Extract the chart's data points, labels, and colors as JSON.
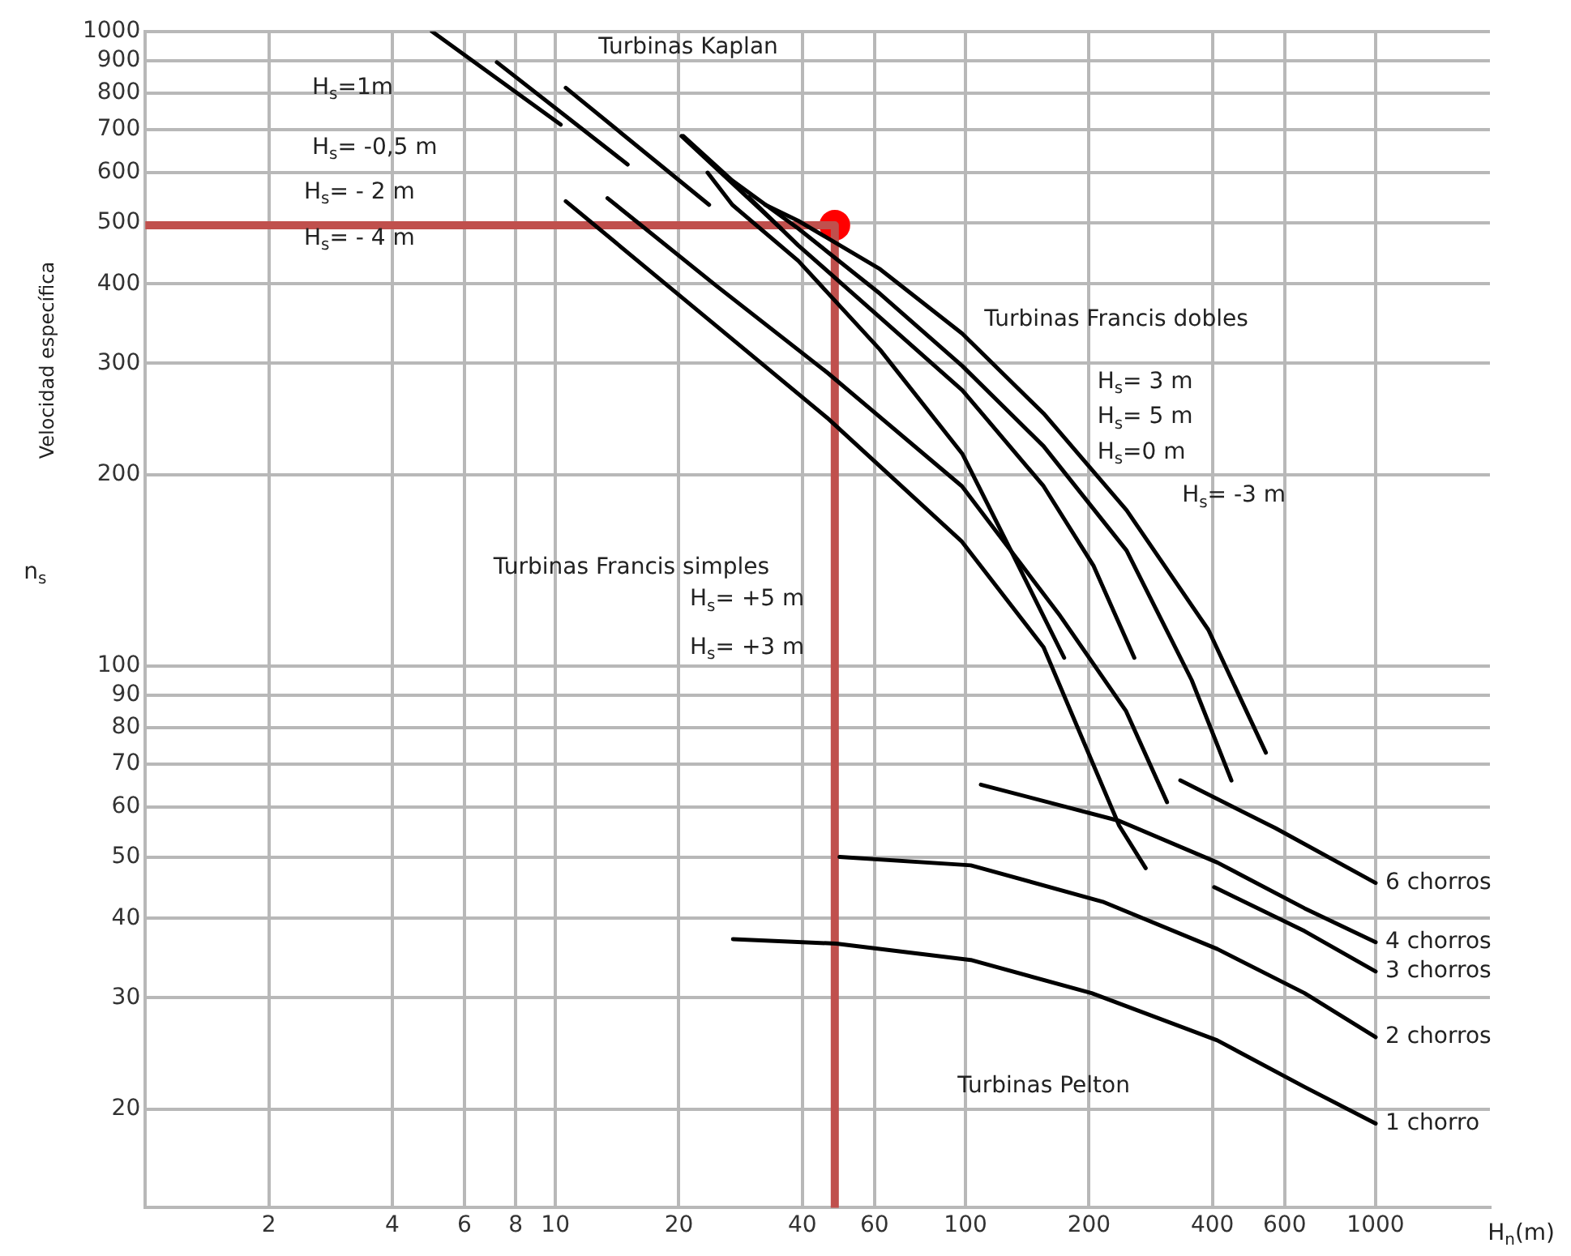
{
  "chart_data": {
    "type": "line",
    "xlabel": "H$_{n}$(m)",
    "ylabel": "Velocidad específica",
    "log": "xy",
    "grid": true,
    "marker": "none",
    "line_style": "solid",
    "xlim": [
      1,
      1900
    ],
    "xticks": [
      2,
      4,
      6,
      8,
      10,
      20,
      40,
      60,
      100,
      200,
      400,
      600,
      1000
    ],
    "ylim": [
      14,
      1000
    ],
    "yticks": [
      20,
      30,
      40,
      50,
      60,
      70,
      80,
      90,
      100,
      200,
      300,
      400,
      500,
      600,
      700,
      800,
      900,
      1000
    ],
    "series": [
      {
        "color": "#000000",
        "x": [
          5.0,
          10.3
        ],
        "values": [
          1000,
          713
        ]
      },
      {
        "color": "#000000",
        "x": [
          7.2,
          15.0
        ],
        "values": [
          894,
          617
        ]
      },
      {
        "color": "#000000",
        "x": [
          10.6,
          23.7
        ],
        "values": [
          815,
          533
        ]
      },
      {
        "color": "#000000",
        "x": [
          20.3,
          35.5
        ],
        "values": [
          684,
          489
        ]
      },
      {
        "color": "#000000",
        "x": [
          10.6,
          24.6,
          46,
          98,
          155,
          237,
          275
        ],
        "values": [
          540,
          344,
          246,
          157,
          107,
          56,
          48
        ]
      },
      {
        "color": "#000000",
        "x": [
          13.4,
          24.6,
          46,
          98,
          170,
          246,
          310
        ],
        "values": [
          546,
          398,
          290,
          192,
          120,
          85,
          61
        ]
      },
      {
        "color": "#000000",
        "x": [
          23.5,
          27,
          39.1,
          61.9,
          98.2,
          129,
          174
        ],
        "values": [
          599,
          533,
          435,
          315,
          216,
          152,
          103
        ]
      },
      {
        "color": "#000000",
        "x": [
          29.6,
          39.1,
          61.9,
          98.2,
          155,
          205,
          258
        ],
        "values": [
          548,
          460,
          354,
          272,
          192,
          144,
          103
        ]
      },
      {
        "color": "#000000",
        "x": [
          20.5,
          27,
          39.1,
          61.9,
          98.2,
          155,
          247,
          356,
          445
        ],
        "values": [
          684,
          582,
          489,
          386,
          297,
          222,
          152,
          95,
          66
        ]
      },
      {
        "color": "#000000",
        "x": [
          32.5,
          39.1,
          61.9,
          98.2,
          155,
          247,
          391,
          540
        ],
        "values": [
          533,
          503,
          422,
          334,
          250,
          176,
          114,
          73
        ]
      },
      {
        "name": "6 chorros",
        "color": "#000000",
        "x": [
          334,
          570,
          1000
        ],
        "values": [
          66,
          55.5,
          45.5
        ]
      },
      {
        "name": "4 chorros",
        "color": "#000000",
        "x": [
          109,
          237,
          411,
          671,
          1000
        ],
        "values": [
          65,
          57,
          49,
          41.5,
          36.7
        ]
      },
      {
        "name": "3 chorros",
        "color": "#000000",
        "x": [
          404,
          671,
          1000
        ],
        "values": [
          44.8,
          38.2,
          33
        ]
      },
      {
        "name": "2 chorros",
        "color": "#000000",
        "x": [
          49.3,
          103,
          216,
          411,
          671,
          1000
        ],
        "values": [
          50,
          48.5,
          42.5,
          35.8,
          30.5,
          26
        ]
      },
      {
        "name": "1 chorro",
        "color": "#000000",
        "x": [
          27.1,
          48.4,
          103,
          203,
          411,
          671,
          1000
        ],
        "values": [
          37.1,
          36.5,
          34.4,
          30.5,
          25.7,
          21.7,
          19
        ]
      },
      {
        "color": "#c0504d",
        "x": [
          1,
          48,
          48
        ],
        "values": [
          495,
          495,
          14
        ]
      },
      {
        "type": "scatter",
        "marker": "circle",
        "color": "#ff0000",
        "x": [
          48
        ],
        "values": [
          495
        ]
      }
    ],
    "annotations": [
      "Turbinas Kaplan",
      "H$_{s}$=1m",
      "H$_{s}$= -0,5 m",
      "H$_{s}$= - 2 m",
      "H$_{s}$= - 4 m",
      "Turbinas Francis dobles",
      "H$_{s}$= 3 m",
      "H$_{s}$= 5 m",
      "H$_{s}$=0 m",
      "H$_{s}$= -3 m",
      "Turbinas Francis simples",
      "H$_{s}$= +5 m",
      "H$_{s}$= +3 m",
      "Turbinas Pelton",
      "n$_{s}$"
    ]
  }
}
